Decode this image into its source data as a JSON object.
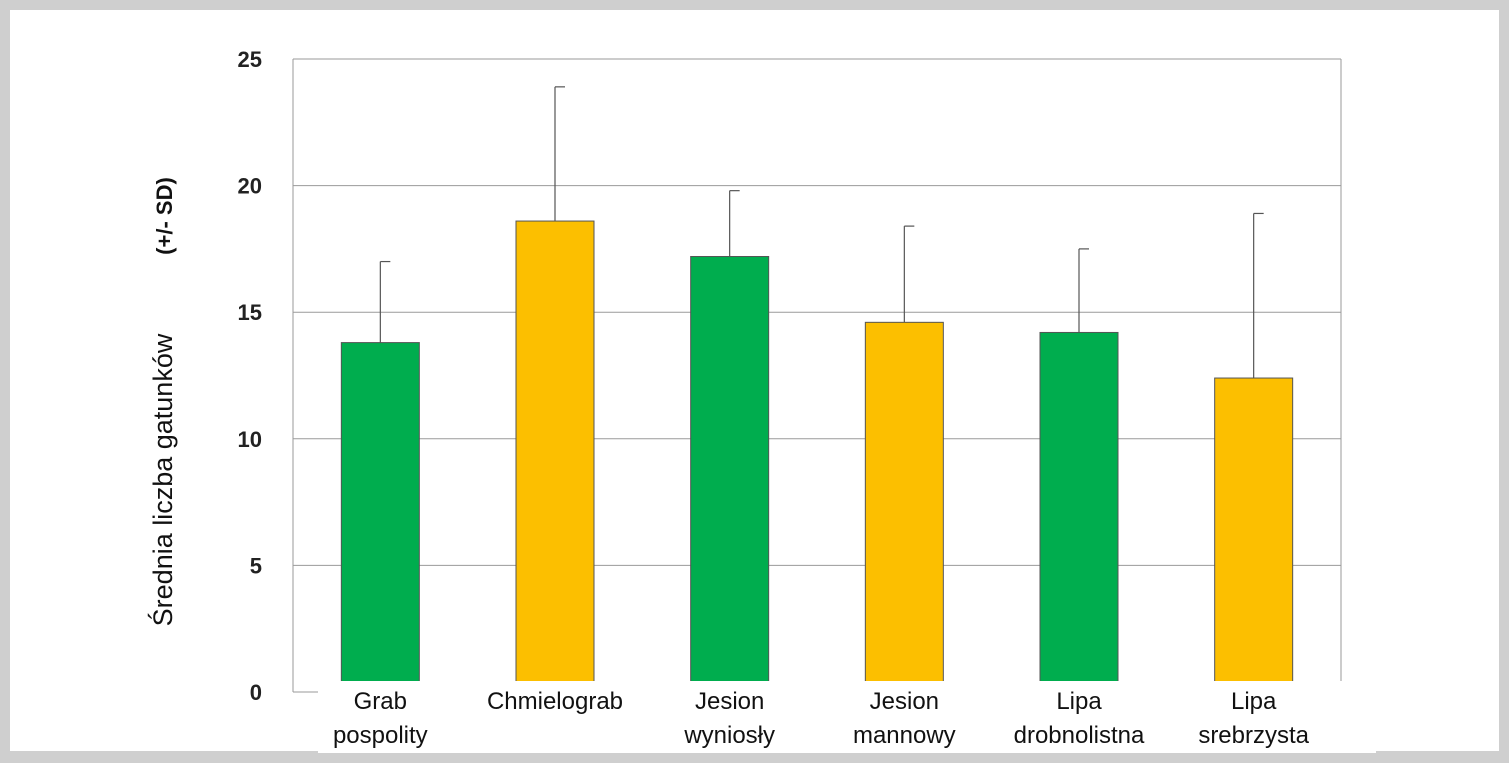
{
  "chart_data": {
    "type": "bar",
    "categories": [
      [
        "Grab",
        "pospolity"
      ],
      [
        "Chmielograb"
      ],
      [
        "Jesion",
        "wyniosły"
      ],
      [
        "Jesion",
        "mannowy"
      ],
      [
        "Lipa",
        "drobnolistna"
      ],
      [
        "Lipa",
        "srebrzysta"
      ]
    ],
    "values": [
      13.8,
      18.6,
      17.2,
      14.6,
      14.2,
      12.4
    ],
    "error_upper": [
      17.0,
      23.9,
      19.8,
      18.4,
      17.5,
      18.9
    ],
    "bar_colors": [
      "#00ad4e",
      "#fcbf00",
      "#00ad4e",
      "#fcbf00",
      "#00ad4e",
      "#fcbf00"
    ],
    "ylabel": "Średnia liczba gatunków",
    "ylabel_suffix": "(+/- SD)",
    "ylim": [
      0,
      25
    ],
    "yticks": [
      0,
      5,
      10,
      15,
      20,
      25
    ],
    "grid": true,
    "grid_color": "#9a9a9a",
    "frame_color": "#cfcfcf"
  }
}
